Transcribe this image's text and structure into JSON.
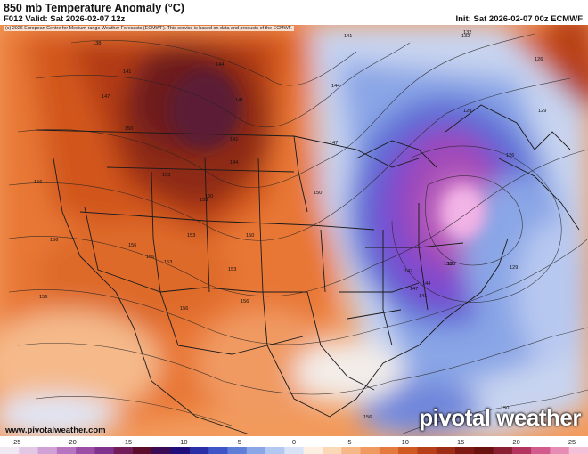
{
  "header": {
    "title": "850 mb Temperature Anomaly (°C)",
    "valid": "F012 Valid: Sat 2026-02-07 12z",
    "init": "Init: Sat 2026-02-07 00z ECMWF"
  },
  "map": {
    "copyright": "(c) 2026 European Centre for Medium-range Weather Forecasts (ECMWF). This service is based on data and products of the ECMWF.",
    "height_contour_labels": [
      "138",
      "141",
      "144",
      "147",
      "150",
      "153",
      "156",
      "132",
      "129",
      "126",
      "141",
      "144",
      "147",
      "150",
      "153",
      "147",
      "141",
      "138",
      "144",
      "141",
      "150",
      "153",
      "156",
      "156",
      "156",
      "156",
      "156",
      "150",
      "150",
      "153",
      "153",
      "156",
      "156",
      "129",
      "129",
      "126",
      "132",
      "138",
      "144",
      "147",
      "141"
    ],
    "colors": {
      "warm_core": "#a0341a",
      "cold_core": "#b04fc0"
    }
  },
  "footer": {
    "website": "www.pivotalweather.com",
    "brand": "pivotal weather"
  },
  "colorbar": {
    "min": -25,
    "max": 25,
    "tick_labels": [
      "-25",
      "-20",
      "-15",
      "-10",
      "-5",
      "0",
      "5",
      "10",
      "15",
      "20",
      "25"
    ],
    "colors": [
      "#f0e8f3",
      "#e3c8e6",
      "#d0a0d6",
      "#b775c0",
      "#9c4ea7",
      "#80338c",
      "#731c5a",
      "#5c0d2d",
      "#3a0a55",
      "#1f0e7a",
      "#2a2fa8",
      "#3f55c7",
      "#5f7ed8",
      "#8aa6e6",
      "#b3c8f0",
      "#d8e3f7",
      "#fdf0e2",
      "#fbd9b6",
      "#f7b889",
      "#f09a62",
      "#e47a3d",
      "#d05a22",
      "#b84019",
      "#9e2d15",
      "#7f1a12",
      "#6a120d",
      "#8a1e33",
      "#b2345f",
      "#d25b8c",
      "#e78db5",
      "#f4c0d8"
    ]
  }
}
